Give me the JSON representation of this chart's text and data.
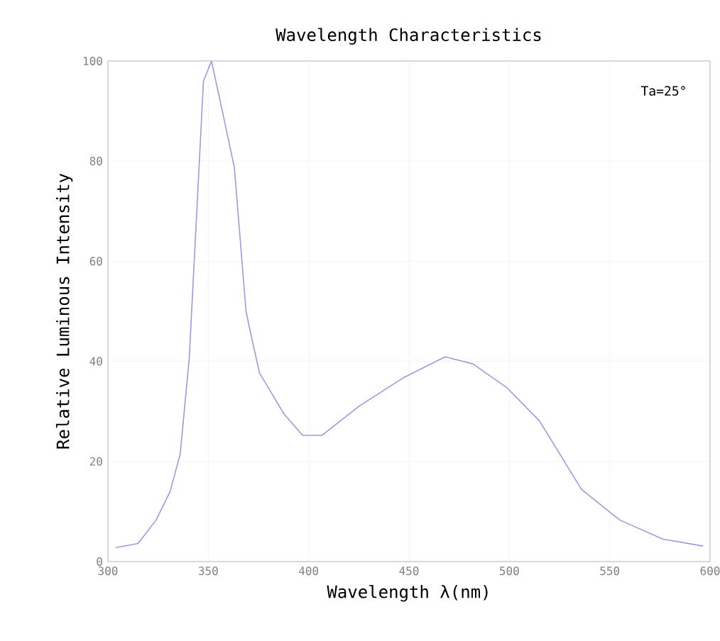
{
  "chart_data": {
    "type": "line",
    "title": "Wavelength Characteristics",
    "xlabel": "Wavelength λ(nm)",
    "ylabel": "Relative Luminous Intensity",
    "annotations": [
      "Ta=25°"
    ],
    "x": [
      304,
      315,
      324,
      331,
      336,
      340.5,
      347.6,
      351.6,
      357,
      363,
      368.8,
      372,
      375.5,
      387.7,
      397,
      406.6,
      425,
      446.7,
      468,
      481.8,
      498.6,
      515,
      536,
      555,
      576.4,
      596.5
    ],
    "series": [
      {
        "color": "#9a9ae0",
        "values": [
          2.8,
          3.6,
          8.3,
          14,
          21.5,
          40.5,
          96,
          100,
          90,
          78.7,
          50,
          44,
          37.7,
          29.5,
          25.2,
          25.2,
          31,
          36.6,
          40.9,
          39.5,
          34.8,
          28.1,
          14.4,
          8.3,
          4.5,
          3.1
        ]
      }
    ],
    "xlim": [
      300,
      600
    ],
    "ylim": [
      0,
      100
    ],
    "xticks": [
      300,
      350,
      400,
      450,
      500,
      550,
      600
    ],
    "yticks": [
      0,
      20,
      40,
      60,
      80,
      100
    ],
    "grid": true,
    "marker": "none",
    "line_style": "solid"
  }
}
